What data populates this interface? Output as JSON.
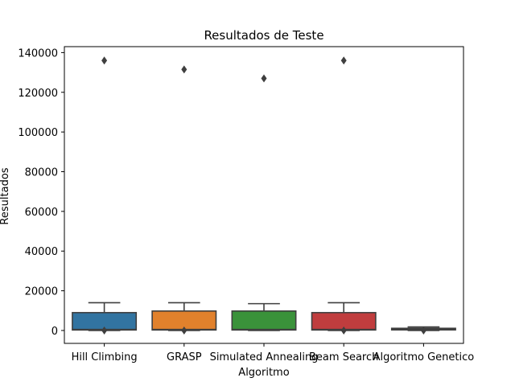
{
  "chart_data": {
    "type": "box",
    "title": "Resultados de Teste",
    "xlabel": "Algoritmo",
    "ylabel": "Resultados",
    "ylim": [
      -6500,
      143000
    ],
    "yticks": [
      0,
      20000,
      40000,
      60000,
      80000,
      100000,
      120000,
      140000
    ],
    "grid": false,
    "boxes": [
      {
        "category": "Hill Climbing",
        "color": "#3274a1",
        "q1": 250,
        "median": 500,
        "q3": 9000,
        "whisker_low": 0,
        "whisker_high": 14000,
        "outliers": [
          136000,
          0
        ]
      },
      {
        "category": "GRASP",
        "color": "#e1812c",
        "q1": 250,
        "median": 500,
        "q3": 9800,
        "whisker_low": 0,
        "whisker_high": 14000,
        "outliers": [
          131500,
          0
        ]
      },
      {
        "category": "Simulated Annealing",
        "color": "#3a923a",
        "q1": 250,
        "median": 500,
        "q3": 9800,
        "whisker_low": 0,
        "whisker_high": 13500,
        "outliers": [
          127000
        ]
      },
      {
        "category": "Beam Search",
        "color": "#c03d3e",
        "q1": 250,
        "median": 500,
        "q3": 9000,
        "whisker_low": 0,
        "whisker_high": 14000,
        "outliers": [
          136000,
          0
        ]
      },
      {
        "category": "Algoritmo Genetico",
        "color": "#9372b2",
        "q1": 300,
        "median": 600,
        "q3": 1100,
        "whisker_low": 0,
        "whisker_high": 1800,
        "outliers": [
          0
        ]
      }
    ]
  }
}
